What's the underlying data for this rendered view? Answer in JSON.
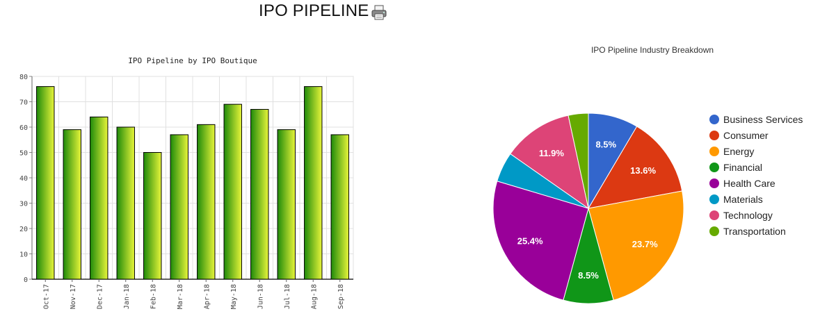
{
  "page": {
    "title": "IPO PIPELINE"
  },
  "icons": {
    "print": "printer-icon"
  },
  "chart_data": [
    {
      "type": "bar",
      "title": "IPO Pipeline by IPO Boutique",
      "categories": [
        "Oct-17",
        "Nov-17",
        "Dec-17",
        "Jan-18",
        "Feb-18",
        "Mar-18",
        "Apr-18",
        "May-18",
        "Jun-18",
        "Jul-18",
        "Aug-18",
        "Sep-18"
      ],
      "values": [
        76,
        59,
        64,
        60,
        50,
        57,
        61,
        69,
        67,
        59,
        76,
        57
      ],
      "ylim": [
        0,
        80
      ],
      "yticks": [
        0,
        10,
        20,
        30,
        40,
        50,
        60,
        70,
        80
      ],
      "grid": true,
      "colors": {
        "bar_dark": "#1f8a0a",
        "bar_light": "#e8f53a",
        "bar_outline": "#000000",
        "grid": "#e0e0e0"
      }
    },
    {
      "type": "pie",
      "title": "IPO Pipeline Industry Breakdown",
      "legend_position": "right",
      "slices": [
        {
          "label": "Business Services",
          "value": 8.5,
          "display": "8.5%",
          "color": "#3366cc"
        },
        {
          "label": "Consumer",
          "value": 13.6,
          "display": "13.6%",
          "color": "#dc3912"
        },
        {
          "label": "Energy",
          "value": 23.7,
          "display": "23.7%",
          "color": "#ff9900"
        },
        {
          "label": "Financial",
          "value": 8.5,
          "display": "8.5%",
          "color": "#109618"
        },
        {
          "label": "Health Care",
          "value": 25.4,
          "display": "25.4%",
          "color": "#990099"
        },
        {
          "label": "Materials",
          "value": 5.1,
          "display": "",
          "color": "#0099c6"
        },
        {
          "label": "Technology",
          "value": 11.9,
          "display": "11.9%",
          "color": "#dd4477"
        },
        {
          "label": "Transportation",
          "value": 3.4,
          "display": "",
          "color": "#66aa00"
        }
      ]
    }
  ]
}
